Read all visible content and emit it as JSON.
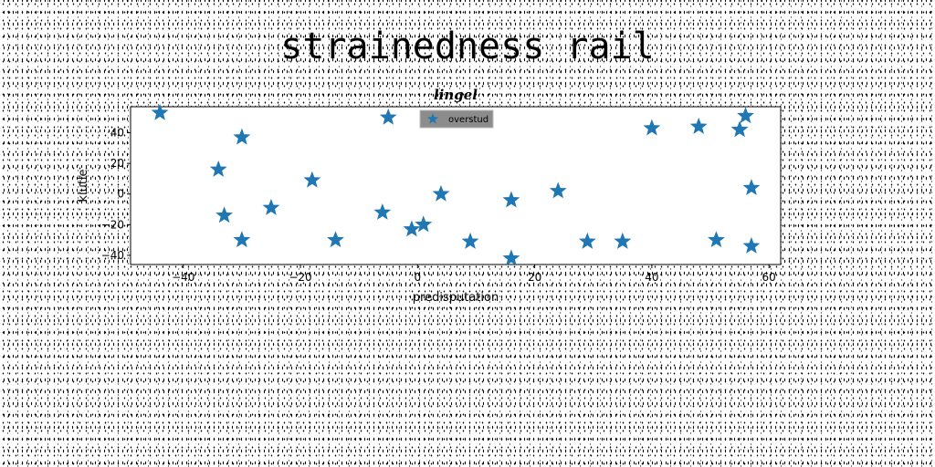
{
  "figure_title": "strainedness rail",
  "chart_data": {
    "type": "scatter",
    "title": "lingel",
    "xlabel": "predisputation",
    "ylabel": "kiutle",
    "xlim": [
      -49,
      62
    ],
    "ylim": [
      -46,
      57
    ],
    "xticks": [
      -40,
      -20,
      0,
      20,
      40,
      60
    ],
    "xtick_labels": [
      "−40",
      "−20",
      "0",
      "20",
      "40",
      "60"
    ],
    "yticks": [
      -40,
      -20,
      0,
      20,
      40
    ],
    "ytick_labels": [
      "−40",
      "−20",
      "0",
      "20",
      "40"
    ],
    "grid": false,
    "legend_position": "top-center",
    "marker": "star",
    "marker_color": "#1f77b4",
    "series": [
      {
        "name": "overstud",
        "points": [
          [
            -44,
            53
          ],
          [
            -34,
            16
          ],
          [
            -33,
            -14
          ],
          [
            -30,
            37
          ],
          [
            -30,
            -30
          ],
          [
            -25,
            -9
          ],
          [
            -18,
            9
          ],
          [
            -14,
            -30
          ],
          [
            -6,
            -12
          ],
          [
            -5,
            50
          ],
          [
            -1,
            -23
          ],
          [
            1,
            -20
          ],
          [
            4,
            0
          ],
          [
            9,
            -31
          ],
          [
            16,
            -4
          ],
          [
            16,
            -42
          ],
          [
            24,
            2
          ],
          [
            29,
            -31
          ],
          [
            35,
            -31
          ],
          [
            40,
            43
          ],
          [
            48,
            44
          ],
          [
            51,
            -30
          ],
          [
            55,
            42
          ],
          [
            56,
            51
          ],
          [
            57,
            4
          ],
          [
            57,
            -34
          ]
        ]
      }
    ]
  }
}
